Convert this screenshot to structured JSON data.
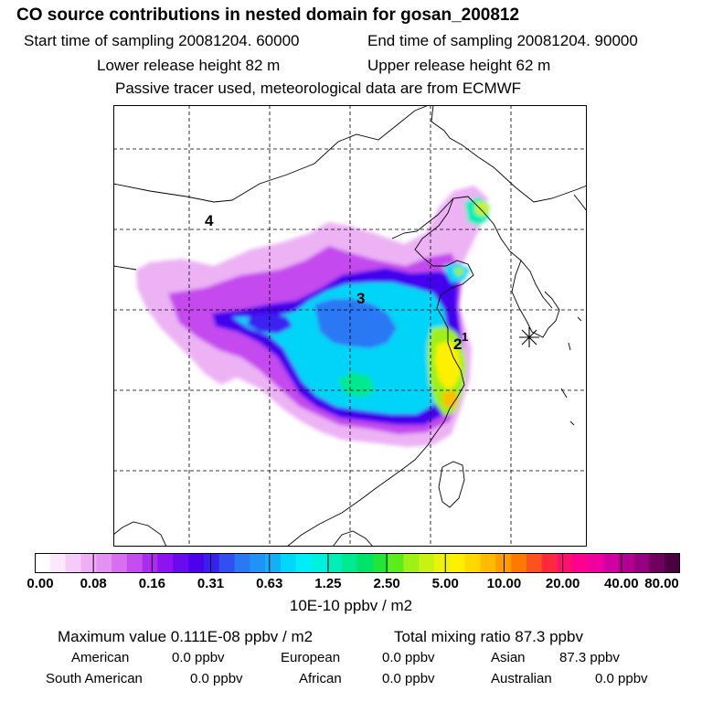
{
  "header": {
    "title": "CO  source contributions in nested domain for gosan_200812",
    "start_time": "Start time of sampling 20081204. 60000",
    "end_time": "End time of sampling 20081204. 90000",
    "lower_release": "Lower release height   82 m",
    "upper_release": "Upper release height   62 m",
    "tracer_note": "Passive tracer used, meteorological data are from ECMWF"
  },
  "map": {
    "region_labels": [
      "4",
      "3",
      "2",
      "1"
    ]
  },
  "colorbar": {
    "tick_labels": [
      "0.00",
      "0.08",
      "0.16",
      "0.31",
      "0.63",
      "1.25",
      "2.50",
      "5.00",
      "10.00",
      "20.00",
      "40.00",
      "80.00"
    ],
    "units": "10E-10 ppbv / m2",
    "colors": [
      "#ffffff",
      "#fbe8fb",
      "#f5ccf7",
      "#efaef5",
      "#e590f3",
      "#d86ff0",
      "#c54cee",
      "#ab2bee",
      "#8d14f0",
      "#6a0aef",
      "#4b00ee",
      "#3a20f0",
      "#3250f2",
      "#2a78f4",
      "#2093f6",
      "#12b0f8",
      "#00d8f9",
      "#00ecf6",
      "#00f0e0",
      "#00eeb8",
      "#00e890",
      "#00e268",
      "#20e63c",
      "#5cec1c",
      "#9ef016",
      "#c8f212",
      "#ecf20c",
      "#fff000",
      "#ffd800",
      "#ffbc00",
      "#ff9c00",
      "#ff7800",
      "#ff5020",
      "#ff2840",
      "#ff1070",
      "#ff0090",
      "#f000a0",
      "#d200a0",
      "#b40090",
      "#940080",
      "#700060",
      "#4a0040"
    ]
  },
  "footer": {
    "max_value": "Maximum value  0.111E-08 ppbv / m2",
    "total_mixing": "Total mixing ratio       87.3 ppbv",
    "american_label": "American",
    "american_value": "0.0 ppbv",
    "european_label": "European",
    "european_value": "0.0 ppbv",
    "asian_label": "Asian",
    "asian_value": "87.3 ppbv",
    "south_american_label": "South American",
    "south_american_value": "0.0 ppbv",
    "african_label": "African",
    "african_value": "0.0 ppbv",
    "australian_label": "Australian",
    "australian_value": "0.0 ppbv"
  }
}
